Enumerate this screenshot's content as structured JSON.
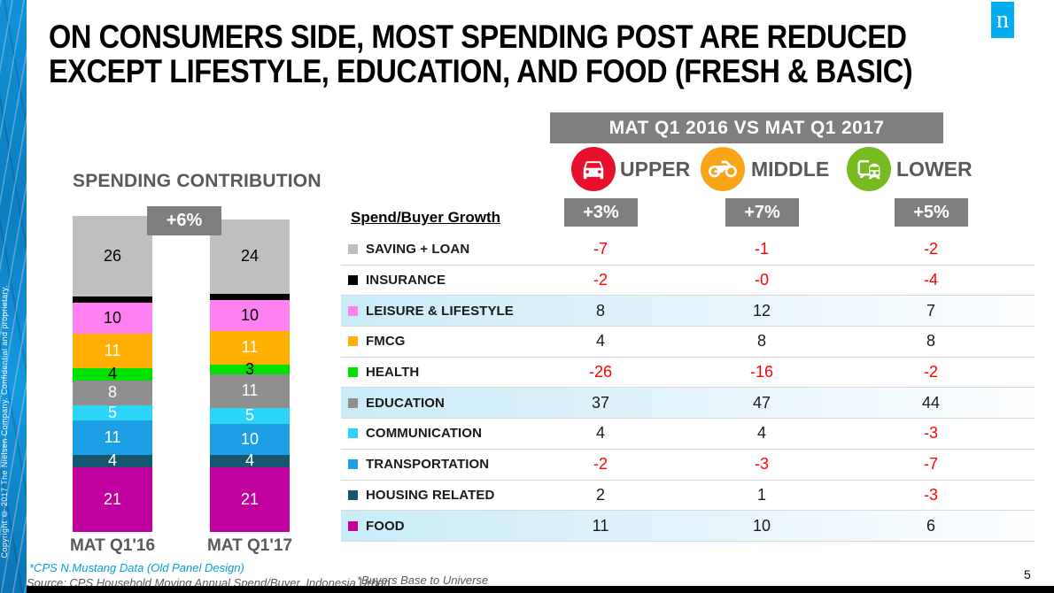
{
  "title": {
    "line1": "ON CONSUMERS SIDE, MOST SPENDING POST ARE REDUCED",
    "line2": "EXCEPT LIFESTYLE, EDUCATION, AND FOOD (FRESH & BASIC)"
  },
  "logo": {
    "letter": "n",
    "color": "#00AEEF"
  },
  "sidebar": {
    "copyright": "Copyright © 2017 The Nielsen Company. Confidential and proprietary."
  },
  "comparison_header": {
    "label": "MAT Q1 2016 VS MAT Q1 2017",
    "bg": "#7F7F7F"
  },
  "classes": [
    {
      "name": "UPPER",
      "growth": "+3%",
      "icon": "car-icon",
      "circle_color": "#E8112D"
    },
    {
      "name": "MIDDLE",
      "growth": "+7%",
      "icon": "motorcycle-icon",
      "circle_color": "#F9A51A"
    },
    {
      "name": "LOWER",
      "growth": "+5%",
      "icon": "vehicles-icon",
      "circle_color": "#76BC21"
    }
  ],
  "spend_header": "Spend/Buyer Growth",
  "chart_data": [
    {
      "type": "bar",
      "variant": "stacked-column",
      "title": "SPENDING CONTRIBUTION",
      "total_growth_label": "+6%",
      "categories": [
        "MAT Q1'16",
        "MAT Q1'17"
      ],
      "unit": "% spending contribution",
      "series": [
        {
          "name": "SAVING + LOAN",
          "color": "#BFBFBF",
          "text_color": "#000000",
          "values": [
            26,
            24
          ],
          "labels": [
            "26",
            "24"
          ]
        },
        {
          "name": "INSURANCE",
          "color": "#000000",
          "text_color": "#FFFFFF",
          "values": [
            2,
            2
          ],
          "labels": [
            "",
            ""
          ]
        },
        {
          "name": "LEISURE & LIFESTYLE",
          "color": "#FF80F0",
          "text_color": "#000000",
          "values": [
            10,
            10
          ],
          "labels": [
            "10",
            "10"
          ]
        },
        {
          "name": "FMCG",
          "color": "#FFB000",
          "text_color": "#FFFFFF",
          "values": [
            11,
            11
          ],
          "labels": [
            "11",
            "11"
          ]
        },
        {
          "name": "HEALTH",
          "color": "#00E100",
          "text_color": "#000000",
          "values": [
            4,
            3
          ],
          "labels": [
            "4",
            "3"
          ]
        },
        {
          "name": "EDUCATION",
          "color": "#8F8F8F",
          "text_color": "#FFFFFF",
          "values": [
            8,
            11
          ],
          "labels": [
            "8",
            "11"
          ]
        },
        {
          "name": "COMMUNICATION",
          "color": "#2BD5F8",
          "text_color": "#FFFFFF",
          "values": [
            5,
            5
          ],
          "labels": [
            "5",
            "5"
          ]
        },
        {
          "name": "TRANSPORTATION",
          "color": "#1C9FE5",
          "text_color": "#FFFFFF",
          "values": [
            11,
            10
          ],
          "labels": [
            "11",
            "10"
          ]
        },
        {
          "name": "HOUSING RELATED",
          "color": "#16566E",
          "text_color": "#FFFFFF",
          "values": [
            4,
            4
          ],
          "labels": [
            "4",
            "4"
          ]
        },
        {
          "name": "FOOD",
          "color": "#C0009F",
          "text_color": "#FFFFFF",
          "values": [
            21,
            21
          ],
          "labels": [
            "21",
            "21"
          ]
        }
      ]
    },
    {
      "type": "table",
      "title": "Spend/Buyer Growth",
      "columns": [
        "UPPER",
        "MIDDLE",
        "LOWER"
      ],
      "negative_color": "#FF0000",
      "positive_color": "#1A1A1A",
      "rows": [
        {
          "label": "SAVING + LOAN",
          "swatch": "#BFBFBF",
          "values": [
            "-7",
            "-1",
            "-2"
          ],
          "highlight": false
        },
        {
          "label": "INSURANCE",
          "swatch": "#000000",
          "values": [
            "-2",
            "-0",
            "-4"
          ],
          "highlight": false
        },
        {
          "label": "LEISURE & LIFESTYLE",
          "swatch": "#FF80F0",
          "values": [
            "8",
            "12",
            "7"
          ],
          "highlight": true
        },
        {
          "label": "FMCG",
          "swatch": "#FFB000",
          "values": [
            "4",
            "8",
            "8"
          ],
          "highlight": false
        },
        {
          "label": "HEALTH",
          "swatch": "#00E100",
          "values": [
            "-26",
            "-16",
            "-2"
          ],
          "highlight": false
        },
        {
          "label": "EDUCATION",
          "swatch": "#8F8F8F",
          "values": [
            "37",
            "47",
            "44"
          ],
          "highlight": true
        },
        {
          "label": "COMMUNICATION",
          "swatch": "#2BD5F8",
          "values": [
            "4",
            "4",
            "-3"
          ],
          "highlight": false
        },
        {
          "label": "TRANSPORTATION",
          "swatch": "#1C9FE5",
          "values": [
            "-2",
            "-3",
            "-7"
          ],
          "highlight": false
        },
        {
          "label": "HOUSING RELATED",
          "swatch": "#16566E",
          "values": [
            "2",
            "1",
            "-3"
          ],
          "highlight": false
        },
        {
          "label": "FOOD",
          "swatch": "#C0009F",
          "values": [
            "11",
            "10",
            "6"
          ],
          "highlight": true
        }
      ]
    }
  ],
  "footnotes": {
    "cps": "*CPS N.Mustang Data (Old Panel Design)",
    "source": "Source: CPS Household Moving Annual Spend/Buyer, Indonesia Urban",
    "buyers": "*Buyers Base to Universe"
  },
  "page_number": "5"
}
